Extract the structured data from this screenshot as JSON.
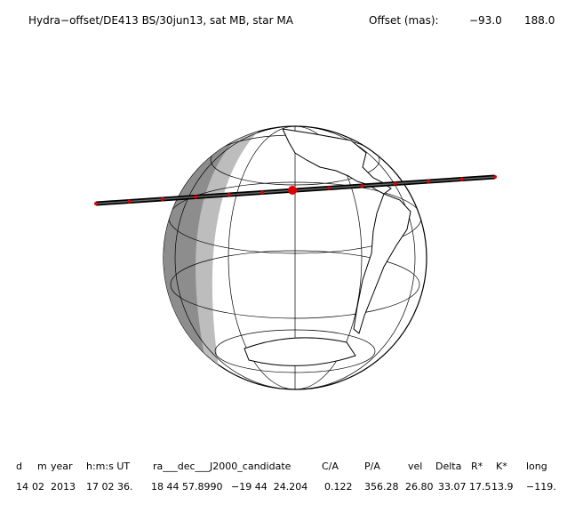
{
  "title": "Hydra−offset/DE413 BS/30jun13, sat MB, star MA",
  "offset": {
    "label": "Offset (mas):",
    "values": [
      "−93.0",
      "188.0"
    ]
  },
  "table": {
    "headers": [
      "d",
      "m",
      "year",
      "h:m:s UT",
      "ra___dec___J2000_candidate",
      "C/A",
      "P/A",
      "vel",
      "Delta",
      "R*",
      "K*",
      "long"
    ],
    "row": [
      "14",
      "02",
      "2013",
      "17 02 36.",
      "18 44 57.8990",
      "−19 44  24.204",
      "0.122",
      "356.28",
      "26.80",
      "33.07",
      "17.5",
      "13.9",
      "−119."
    ]
  }
}
